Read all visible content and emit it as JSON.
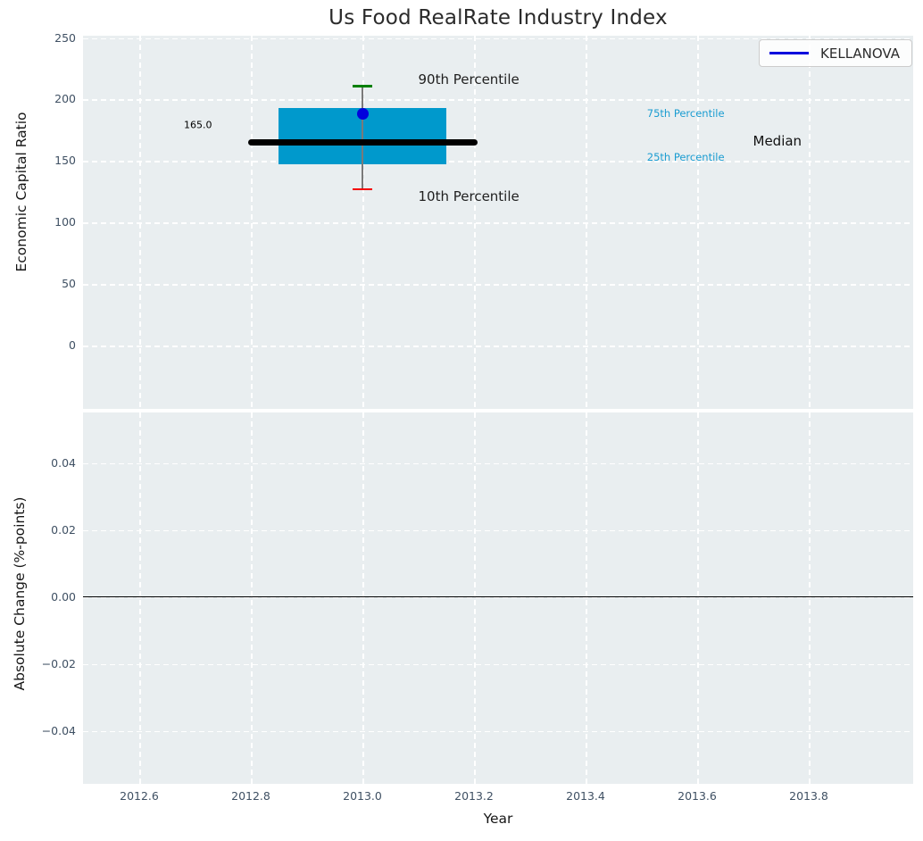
{
  "title": "Us Food RealRate Industry Index",
  "legend": {
    "label": "KELLANOVA"
  },
  "x_axis": {
    "label": "Year",
    "lim": [
      2012.5,
      2013.99
    ],
    "ticks": [
      {
        "v": 2012.6,
        "label": "2012.6"
      },
      {
        "v": 2012.8,
        "label": "2012.8"
      },
      {
        "v": 2013.0,
        "label": "2013.0"
      },
      {
        "v": 2013.2,
        "label": "2013.2"
      },
      {
        "v": 2013.4,
        "label": "2013.4"
      },
      {
        "v": 2013.6,
        "label": "2013.6"
      },
      {
        "v": 2013.8,
        "label": "2013.8"
      }
    ]
  },
  "colors": {
    "plot_bg": "#e9eef0",
    "grid": "#ffffff",
    "tick_label": "#3f5063",
    "title": "#2b2b2b",
    "box_fill": "#0099cc",
    "median_line": "#000000",
    "whisker": "#7a7a7a",
    "p90_cap": "#008000",
    "p10_cap": "#f40000",
    "dot": "#0202dd",
    "legend_line": "#0202dd",
    "percentile_label": "#1a9cd1",
    "zero_line": "#000000"
  },
  "chart_data": [
    {
      "type": "boxplot",
      "title": "Us Food RealRate Industry Index",
      "ylabel": "Economic Capital Ratio",
      "ylim": [
        -52,
        252
      ],
      "grid": true,
      "legend_entries": [
        "KELLANOVA"
      ],
      "yticks": [
        {
          "v": 0,
          "label": "0"
        },
        {
          "v": 50,
          "label": "50"
        },
        {
          "v": 100,
          "label": "100"
        },
        {
          "v": 150,
          "label": "150"
        },
        {
          "v": 200,
          "label": "200"
        },
        {
          "v": 250,
          "label": "250"
        }
      ],
      "box": {
        "x": 2013.0,
        "p10": 127,
        "p25": 147,
        "median": 165,
        "p75": 193,
        "p90": 211,
        "kellanova_value": 188,
        "median_value_label": "165.0",
        "box_x_range": [
          2012.85,
          2013.15
        ],
        "median_x_range": [
          2012.8,
          2013.2
        ],
        "cap_half_width": 0.017
      },
      "annotations": [
        {
          "text": "90th Percentile",
          "x": 2013.1,
          "y": 216,
          "color": "#1f1f1f",
          "size": 15
        },
        {
          "text": "10th Percentile",
          "x": 2013.1,
          "y": 121,
          "color": "#1f1f1f",
          "size": 15
        },
        {
          "text": "165.0",
          "x": 2012.68,
          "y": 179,
          "color": "#000000",
          "size": 11
        },
        {
          "text": "75th Percentile",
          "x": 2013.51,
          "y": 189,
          "color": "#1a9cd1",
          "size": 11.5
        },
        {
          "text": "25th Percentile",
          "x": 2013.51,
          "y": 153,
          "color": "#1a9cd1",
          "size": 11.5
        },
        {
          "text": "Median",
          "x": 2013.7,
          "y": 166,
          "color": "#111111",
          "size": 15
        }
      ]
    },
    {
      "type": "line",
      "ylabel": "Absolute Change (%-points)",
      "xlabel": "Year",
      "ylim": [
        -0.056,
        0.055
      ],
      "grid": true,
      "yticks": [
        {
          "v": -0.04,
          "label": "−0.04"
        },
        {
          "v": -0.02,
          "label": "−0.02"
        },
        {
          "v": 0,
          "label": "0.00"
        },
        {
          "v": 0.02,
          "label": "0.02"
        },
        {
          "v": 0.04,
          "label": "0.04"
        }
      ],
      "zero_line": 0,
      "series": []
    }
  ]
}
